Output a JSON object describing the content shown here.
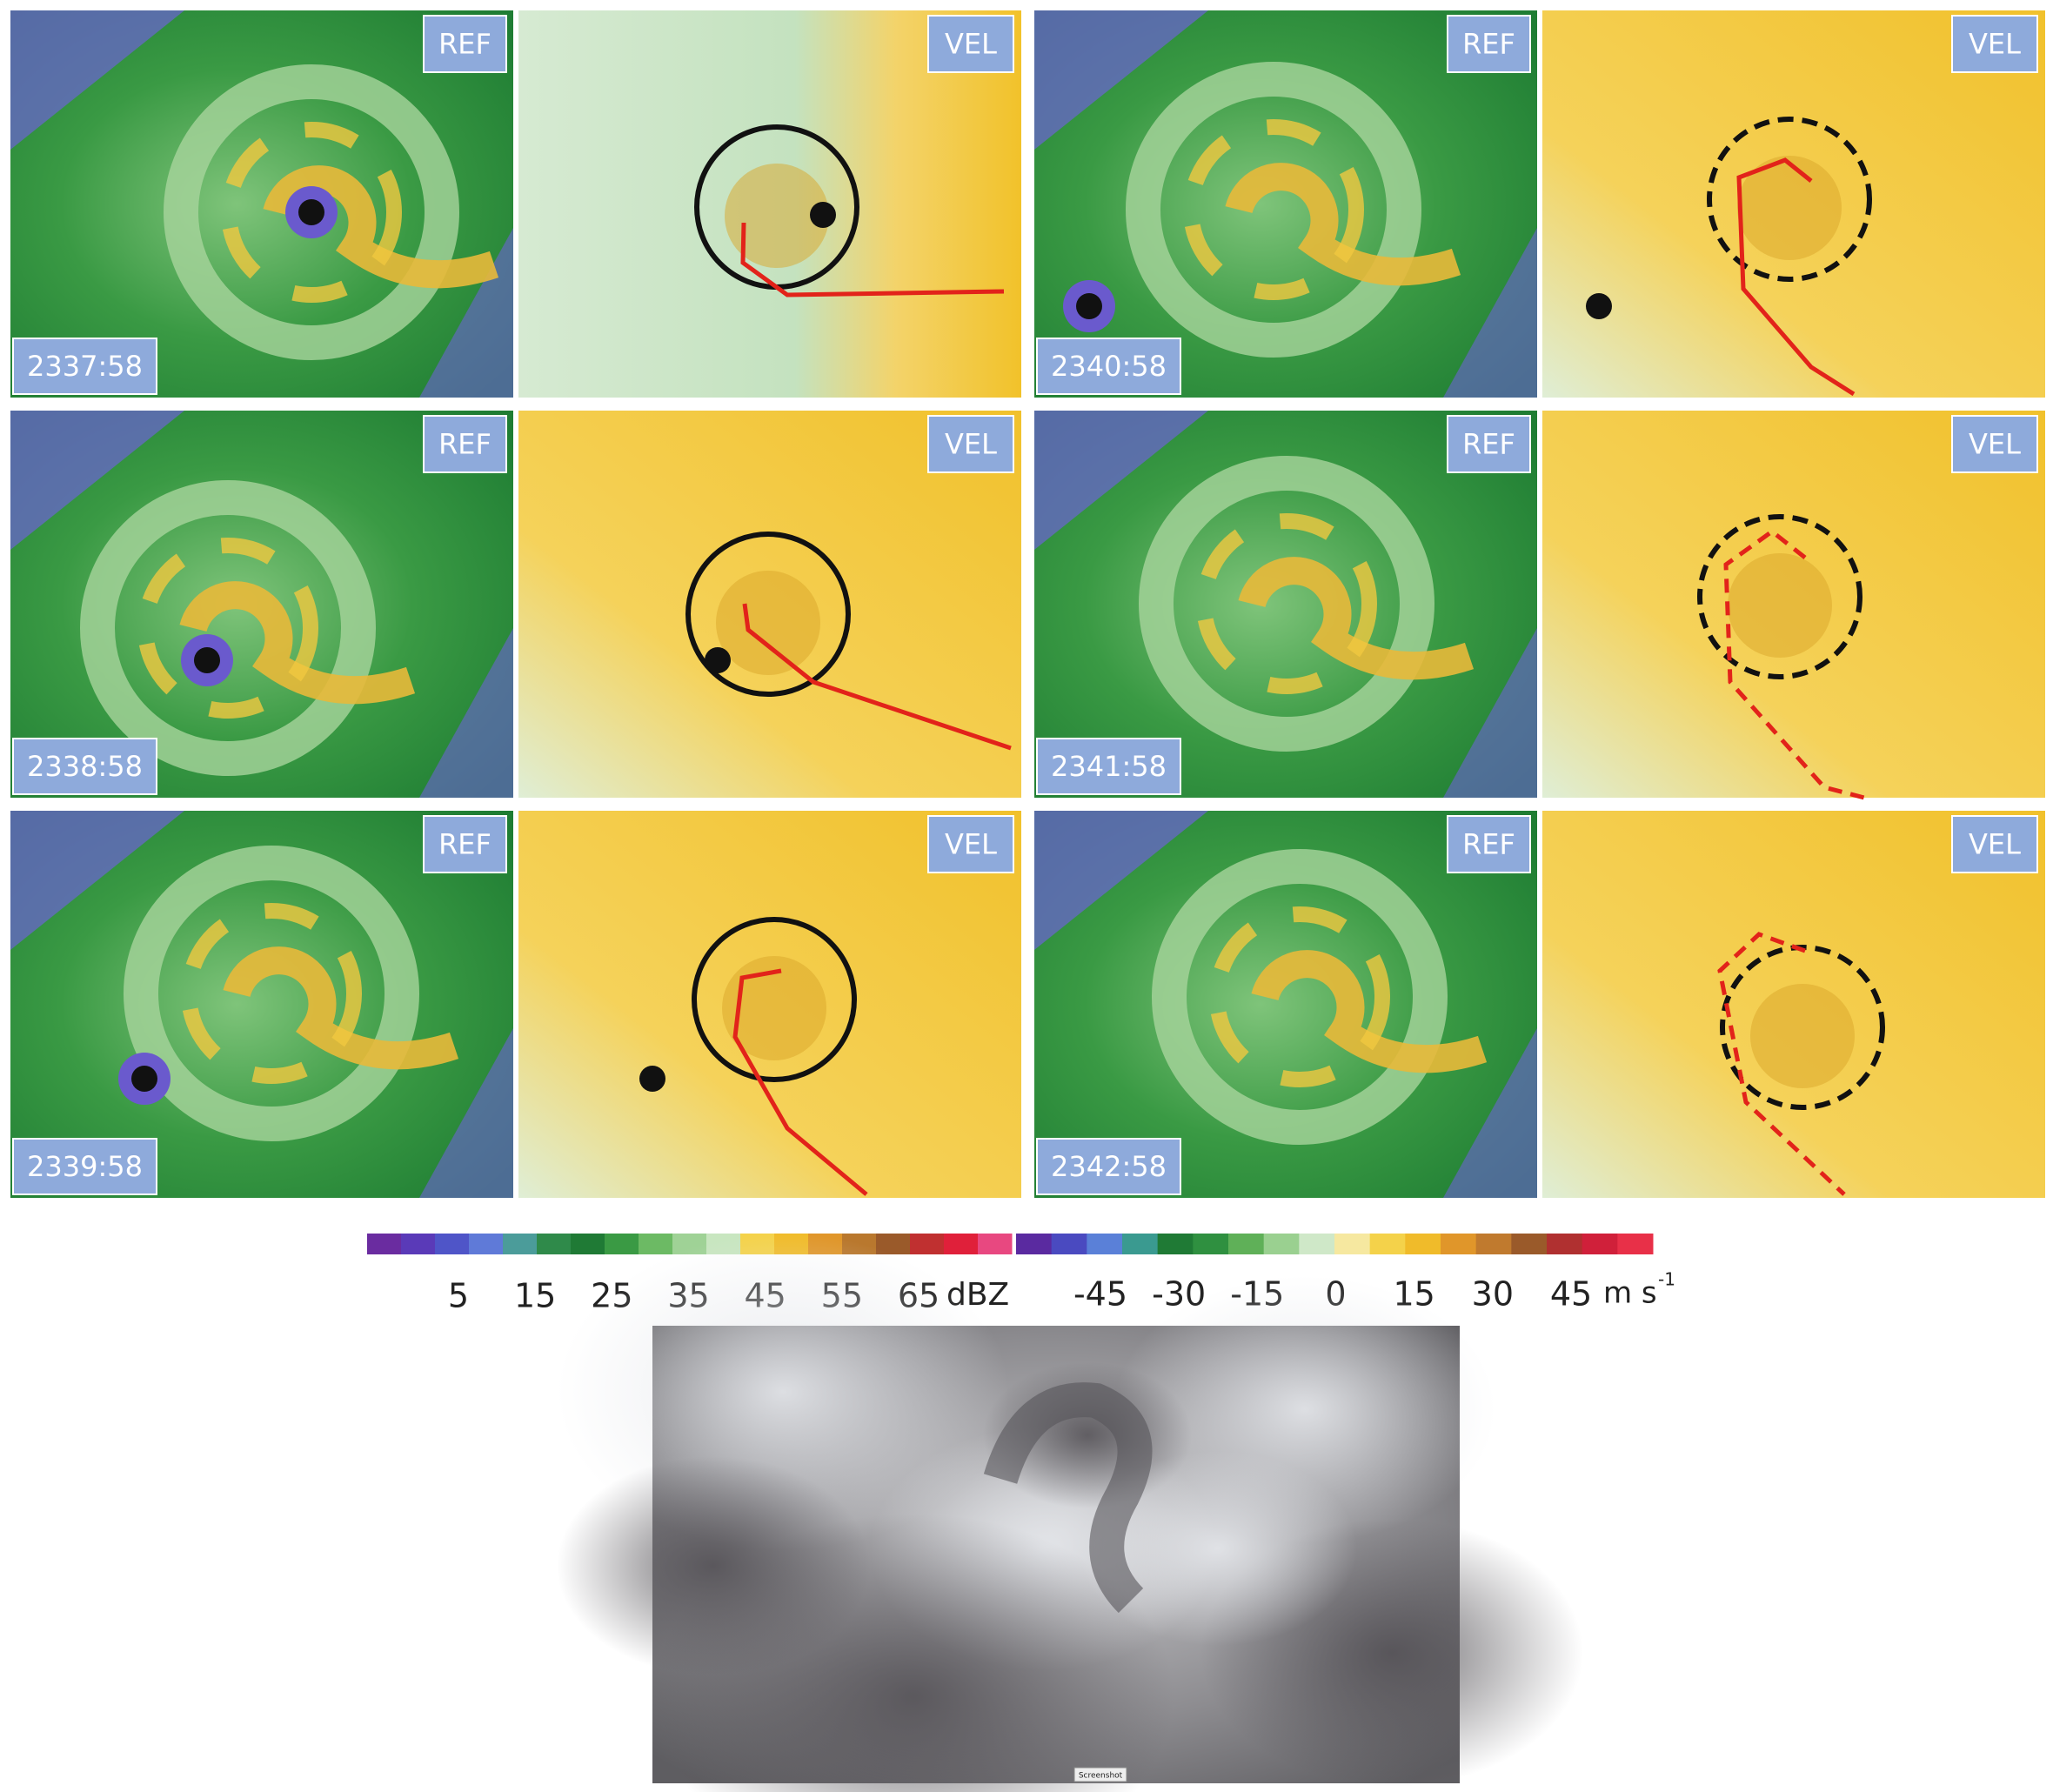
{
  "panels": [
    {
      "time": "2337:58",
      "ref_label": "REF",
      "vel_label": "VEL"
    },
    {
      "time": "2338:58",
      "ref_label": "REF",
      "vel_label": "VEL"
    },
    {
      "time": "2339:58",
      "ref_label": "REF",
      "vel_label": "VEL"
    },
    {
      "time": "2340:58",
      "ref_label": "REF",
      "vel_label": "VEL"
    },
    {
      "time": "2341:58",
      "ref_label": "REF",
      "vel_label": "VEL"
    },
    {
      "time": "2342:58",
      "ref_label": "REF",
      "vel_label": "VEL"
    }
  ],
  "colorbars": {
    "reflectivity": {
      "ticks": [
        5,
        15,
        25,
        35,
        45,
        55,
        65
      ],
      "unit": "dBZ"
    },
    "velocity": {
      "ticks": [
        -45,
        -30,
        -15,
        0,
        15,
        30,
        45
      ],
      "unit": "m s",
      "unit_exponent": "-1"
    }
  },
  "photo": {
    "button": "Screenshot"
  }
}
